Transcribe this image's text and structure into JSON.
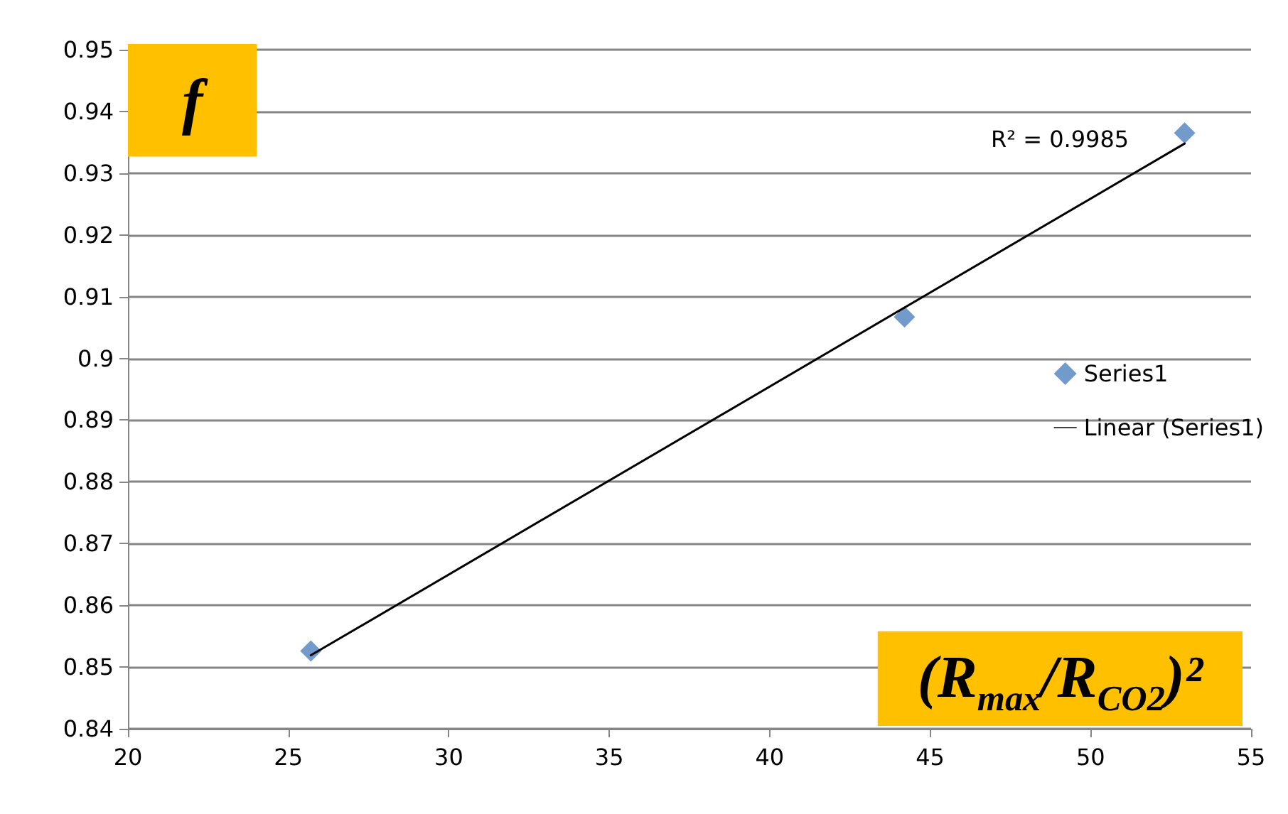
{
  "chart_data": {
    "type": "scatter",
    "xlabel": "(R$_{max}$/R$_{CO2}$)²",
    "ylabel": "f",
    "x": [
      25.7,
      44.2,
      52.93
    ],
    "series": [
      {
        "name": "Series1",
        "color": "#4f81bd",
        "marker": "diamond",
        "values": [
          0.8526,
          0.9067,
          0.9365
        ]
      },
      {
        "name": "Linear (Series1)",
        "type": "line",
        "color": "#000000",
        "marker": "none",
        "line_style": "solid",
        "x": [
          25.7,
          52.93
        ],
        "values": [
          0.8519,
          0.9348
        ]
      }
    ],
    "annotations": [
      "R² = 0.9985"
    ],
    "xlim": [
      20,
      55
    ],
    "xticks": [
      20,
      25,
      30,
      35,
      40,
      45,
      50,
      55
    ],
    "ylim": [
      0.84,
      0.95
    ],
    "yticks": [
      0.84,
      0.85,
      0.86,
      0.87,
      0.88,
      0.89,
      0.9,
      0.91,
      0.92,
      0.93,
      0.94,
      0.95
    ],
    "grid": "y",
    "legend": "right"
  }
}
